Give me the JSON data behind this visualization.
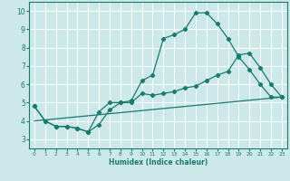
{
  "xlabel": "Humidex (Indice chaleur)",
  "background_color": "#cce8e8",
  "grid_color": "#ffffff",
  "line_color": "#1a7a6e",
  "xlim": [
    -0.5,
    23.5
  ],
  "ylim": [
    2.5,
    10.5
  ],
  "x_ticks": [
    0,
    1,
    2,
    3,
    4,
    5,
    6,
    7,
    8,
    9,
    10,
    11,
    12,
    13,
    14,
    15,
    16,
    17,
    18,
    19,
    20,
    21,
    22,
    23
  ],
  "y_ticks": [
    3,
    4,
    5,
    6,
    7,
    8,
    9,
    10
  ],
  "line1_x": [
    0,
    1,
    2,
    3,
    4,
    5,
    6,
    7,
    8,
    9,
    10,
    11,
    12,
    13,
    14,
    15,
    16,
    17,
    18,
    19,
    20,
    21,
    22,
    23
  ],
  "line1_y": [
    4.8,
    4.0,
    3.7,
    3.7,
    3.6,
    3.4,
    3.8,
    4.6,
    5.0,
    5.0,
    5.5,
    5.4,
    5.5,
    5.6,
    5.8,
    5.9,
    6.2,
    6.5,
    6.7,
    7.6,
    7.7,
    6.9,
    6.0,
    5.3
  ],
  "line2_x": [
    0,
    1,
    2,
    3,
    4,
    5,
    6,
    7,
    8,
    9,
    10,
    11,
    12,
    13,
    14,
    15,
    16,
    17,
    18,
    19,
    20,
    21,
    22,
    23
  ],
  "line2_y": [
    4.8,
    4.0,
    3.7,
    3.7,
    3.6,
    3.4,
    4.5,
    5.0,
    5.0,
    5.1,
    6.2,
    6.5,
    8.5,
    8.7,
    9.0,
    9.9,
    9.9,
    9.3,
    8.5,
    7.5,
    6.8,
    6.0,
    5.3,
    5.3
  ],
  "line3_x": [
    0,
    23
  ],
  "line3_y": [
    4.0,
    5.3
  ]
}
